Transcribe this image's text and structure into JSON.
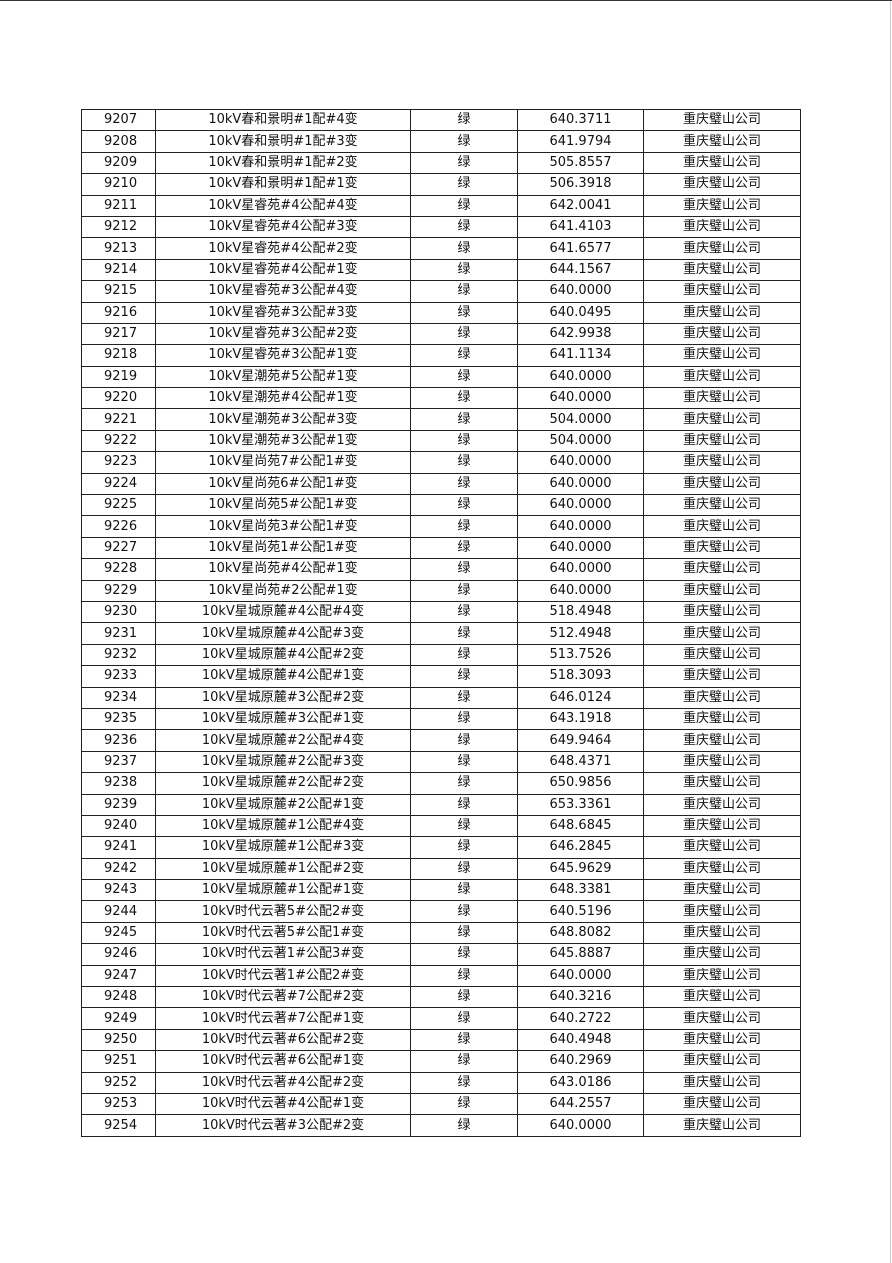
{
  "table": {
    "rows": [
      [
        "9207",
        "10kV春和景明#1配#4变",
        "绿",
        "640.3711",
        "重庆璧山公司"
      ],
      [
        "9208",
        "10kV春和景明#1配#3变",
        "绿",
        "641.9794",
        "重庆璧山公司"
      ],
      [
        "9209",
        "10kV春和景明#1配#2变",
        "绿",
        "505.8557",
        "重庆璧山公司"
      ],
      [
        "9210",
        "10kV春和景明#1配#1变",
        "绿",
        "506.3918",
        "重庆璧山公司"
      ],
      [
        "9211",
        "10kV星睿苑#4公配#4变",
        "绿",
        "642.0041",
        "重庆璧山公司"
      ],
      [
        "9212",
        "10kV星睿苑#4公配#3变",
        "绿",
        "641.4103",
        "重庆璧山公司"
      ],
      [
        "9213",
        "10kV星睿苑#4公配#2变",
        "绿",
        "641.6577",
        "重庆璧山公司"
      ],
      [
        "9214",
        "10kV星睿苑#4公配#1变",
        "绿",
        "644.1567",
        "重庆璧山公司"
      ],
      [
        "9215",
        "10kV星睿苑#3公配#4变",
        "绿",
        "640.0000",
        "重庆璧山公司"
      ],
      [
        "9216",
        "10kV星睿苑#3公配#3变",
        "绿",
        "640.0495",
        "重庆璧山公司"
      ],
      [
        "9217",
        "10kV星睿苑#3公配#2变",
        "绿",
        "642.9938",
        "重庆璧山公司"
      ],
      [
        "9218",
        "10kV星睿苑#3公配#1变",
        "绿",
        "641.1134",
        "重庆璧山公司"
      ],
      [
        "9219",
        "10kV星潮苑#5公配#1变",
        "绿",
        "640.0000",
        "重庆璧山公司"
      ],
      [
        "9220",
        "10kV星潮苑#4公配#1变",
        "绿",
        "640.0000",
        "重庆璧山公司"
      ],
      [
        "9221",
        "10kV星潮苑#3公配#3变",
        "绿",
        "504.0000",
        "重庆璧山公司"
      ],
      [
        "9222",
        "10kV星潮苑#3公配#1变",
        "绿",
        "504.0000",
        "重庆璧山公司"
      ],
      [
        "9223",
        "10kV星尚苑7#公配1#变",
        "绿",
        "640.0000",
        "重庆璧山公司"
      ],
      [
        "9224",
        "10kV星尚苑6#公配1#变",
        "绿",
        "640.0000",
        "重庆璧山公司"
      ],
      [
        "9225",
        "10kV星尚苑5#公配1#变",
        "绿",
        "640.0000",
        "重庆璧山公司"
      ],
      [
        "9226",
        "10kV星尚苑3#公配1#变",
        "绿",
        "640.0000",
        "重庆璧山公司"
      ],
      [
        "9227",
        "10kV星尚苑1#公配1#变",
        "绿",
        "640.0000",
        "重庆璧山公司"
      ],
      [
        "9228",
        "10kV星尚苑#4公配#1变",
        "绿",
        "640.0000",
        "重庆璧山公司"
      ],
      [
        "9229",
        "10kV星尚苑#2公配#1变",
        "绿",
        "640.0000",
        "重庆璧山公司"
      ],
      [
        "9230",
        "10kV星城原麓#4公配#4变",
        "绿",
        "518.4948",
        "重庆璧山公司"
      ],
      [
        "9231",
        "10kV星城原麓#4公配#3变",
        "绿",
        "512.4948",
        "重庆璧山公司"
      ],
      [
        "9232",
        "10kV星城原麓#4公配#2变",
        "绿",
        "513.7526",
        "重庆璧山公司"
      ],
      [
        "9233",
        "10kV星城原麓#4公配#1变",
        "绿",
        "518.3093",
        "重庆璧山公司"
      ],
      [
        "9234",
        "10kV星城原麓#3公配#2变",
        "绿",
        "646.0124",
        "重庆璧山公司"
      ],
      [
        "9235",
        "10kV星城原麓#3公配#1变",
        "绿",
        "643.1918",
        "重庆璧山公司"
      ],
      [
        "9236",
        "10kV星城原麓#2公配#4变",
        "绿",
        "649.9464",
        "重庆璧山公司"
      ],
      [
        "9237",
        "10kV星城原麓#2公配#3变",
        "绿",
        "648.4371",
        "重庆璧山公司"
      ],
      [
        "9238",
        "10kV星城原麓#2公配#2变",
        "绿",
        "650.9856",
        "重庆璧山公司"
      ],
      [
        "9239",
        "10kV星城原麓#2公配#1变",
        "绿",
        "653.3361",
        "重庆璧山公司"
      ],
      [
        "9240",
        "10kV星城原麓#1公配#4变",
        "绿",
        "648.6845",
        "重庆璧山公司"
      ],
      [
        "9241",
        "10kV星城原麓#1公配#3变",
        "绿",
        "646.2845",
        "重庆璧山公司"
      ],
      [
        "9242",
        "10kV星城原麓#1公配#2变",
        "绿",
        "645.9629",
        "重庆璧山公司"
      ],
      [
        "9243",
        "10kV星城原麓#1公配#1变",
        "绿",
        "648.3381",
        "重庆璧山公司"
      ],
      [
        "9244",
        "10kV时代云著5#公配2#变",
        "绿",
        "640.5196",
        "重庆璧山公司"
      ],
      [
        "9245",
        "10kV时代云著5#公配1#变",
        "绿",
        "648.8082",
        "重庆璧山公司"
      ],
      [
        "9246",
        "10kV时代云著1#公配3#变",
        "绿",
        "645.8887",
        "重庆璧山公司"
      ],
      [
        "9247",
        "10kV时代云著1#公配2#变",
        "绿",
        "640.0000",
        "重庆璧山公司"
      ],
      [
        "9248",
        "10kV时代云著#7公配#2变",
        "绿",
        "640.3216",
        "重庆璧山公司"
      ],
      [
        "9249",
        "10kV时代云著#7公配#1变",
        "绿",
        "640.2722",
        "重庆璧山公司"
      ],
      [
        "9250",
        "10kV时代云著#6公配#2变",
        "绿",
        "640.4948",
        "重庆璧山公司"
      ],
      [
        "9251",
        "10kV时代云著#6公配#1变",
        "绿",
        "640.2969",
        "重庆璧山公司"
      ],
      [
        "9252",
        "10kV时代云著#4公配#2变",
        "绿",
        "643.0186",
        "重庆璧山公司"
      ],
      [
        "9253",
        "10kV时代云著#4公配#1变",
        "绿",
        "644.2557",
        "重庆璧山公司"
      ],
      [
        "9254",
        "10kV时代云著#3公配#2变",
        "绿",
        "640.0000",
        "重庆璧山公司"
      ]
    ]
  }
}
